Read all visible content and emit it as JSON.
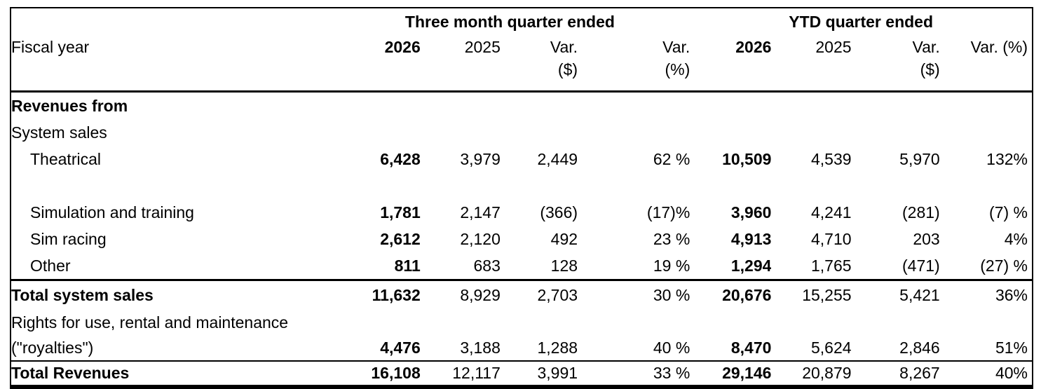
{
  "table": {
    "groups": {
      "three_month": "Three month quarter ended",
      "ytd": "YTD quarter ended"
    },
    "header": {
      "fiscal_year": "Fiscal year",
      "cols": [
        "2026",
        "2025",
        "Var.",
        "Var.",
        "2026",
        "2025",
        "Var.",
        "Var. (%)"
      ],
      "subs": [
        "",
        "",
        "($)",
        "(%)",
        "",
        "",
        "($)",
        ""
      ]
    },
    "rows": [
      {
        "label": "Revenues from",
        "cells": [
          "",
          "",
          "",
          "",
          "",
          "",
          "",
          ""
        ]
      },
      {
        "label": "System sales",
        "cells": [
          "",
          "",
          "",
          "",
          "",
          "",
          "",
          ""
        ]
      },
      {
        "label": "Theatrical",
        "cells": [
          "6,428",
          "3,979",
          "2,449",
          "62 %",
          "10,509",
          "4,539",
          "5,970",
          "132%"
        ]
      },
      {
        "label": "",
        "cells": [
          "",
          "",
          "",
          "",
          "",
          "",
          "",
          ""
        ]
      },
      {
        "label": "Simulation and training",
        "cells": [
          "1,781",
          "2,147",
          "(366)",
          "(17)%",
          "3,960",
          "4,241",
          "(281)",
          "(7) %"
        ]
      },
      {
        "label": "Sim racing",
        "cells": [
          "2,612",
          "2,120",
          "492",
          "23 %",
          "4,913",
          "4,710",
          "203",
          "4%"
        ]
      },
      {
        "label": "Other",
        "cells": [
          "811",
          "683",
          "128",
          "19 %",
          "1,294",
          "1,765",
          "(471)",
          "(27) %"
        ]
      },
      {
        "label": "Total system sales",
        "cells": [
          "11,632",
          "8,929",
          "2,703",
          "30 %",
          "20,676",
          "15,255",
          "5,421",
          "36%"
        ]
      },
      {
        "label": "Rights for use, rental and maintenance",
        "cells": [
          "",
          "",
          "",
          "",
          "",
          "",
          "",
          ""
        ]
      },
      {
        "label": "(\"royalties\")",
        "cells": [
          "4,476",
          "3,188",
          "1,288",
          "40 %",
          "8,470",
          "5,624",
          "2,846",
          "51%"
        ]
      },
      {
        "label": "Total Revenues",
        "cells": [
          "16,108",
          "12,117",
          "3,991",
          "33 %",
          "29,146",
          "20,879",
          "8,267",
          "40%"
        ]
      }
    ],
    "colors": {
      "text": "#000000",
      "border": "#000000",
      "background": "#ffffff"
    }
  }
}
